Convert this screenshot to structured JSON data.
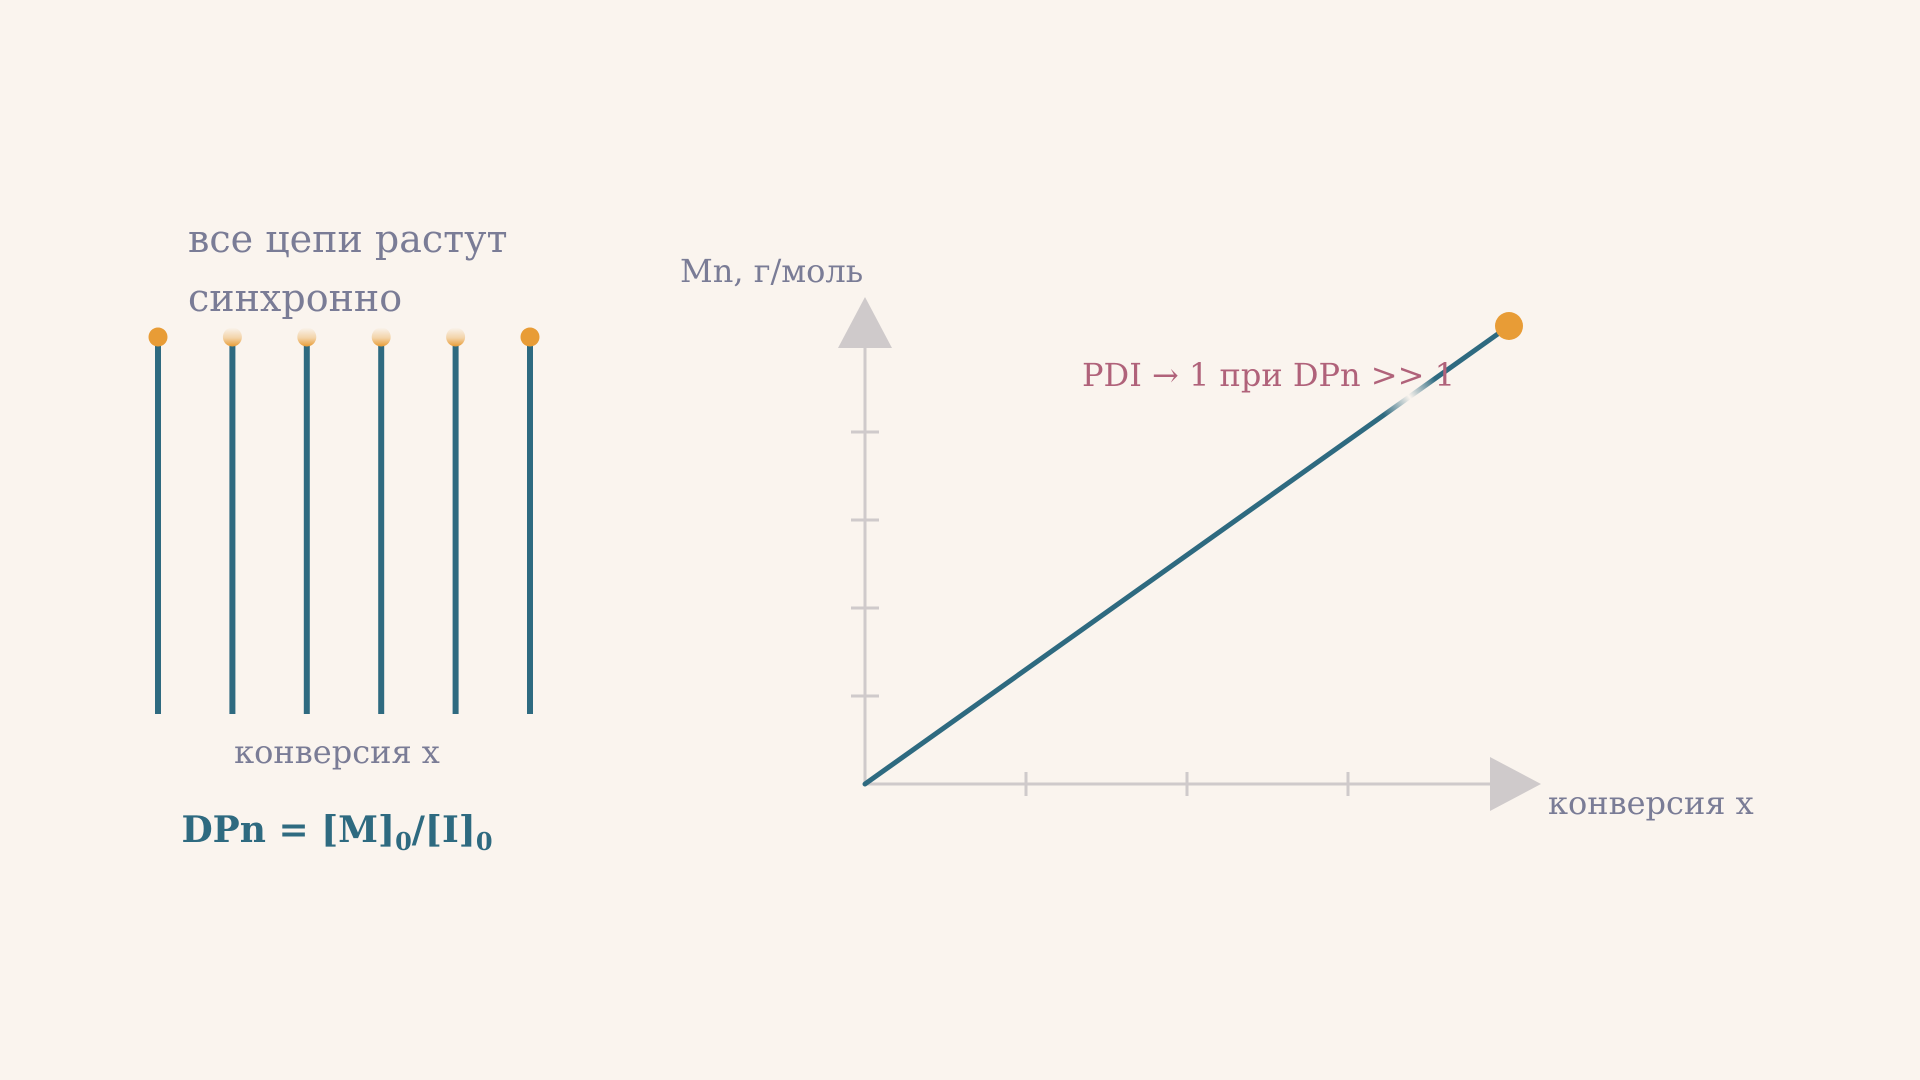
{
  "left_panel": {
    "caption_line1": "все цепи растут",
    "caption_line2": "синхронно",
    "xlabel": "конверсия x",
    "formula": {
      "prefix": "DPn = [M]",
      "sub1": "0",
      "middle": "/[I]",
      "sub2": "0"
    },
    "chain_count": 6
  },
  "chart_data": {
    "type": "line",
    "title": "",
    "xlabel": "конверсия x",
    "ylabel": "Mn, г/моль",
    "annotation": "PDI → 1 при DPn >> 1",
    "x_ticks": 3,
    "y_ticks": 4,
    "grid": false,
    "series": [
      {
        "x": [
          0,
          1
        ],
        "y": [
          0,
          1
        ]
      }
    ]
  },
  "colors": {
    "background": "#faf4ee",
    "chain": "#2e6a80",
    "bead": "#e89c36",
    "axis": "#cfcacb",
    "muted_text": "#7a7c96",
    "annotation": "#b0627a",
    "formula": "#2e6a80"
  }
}
